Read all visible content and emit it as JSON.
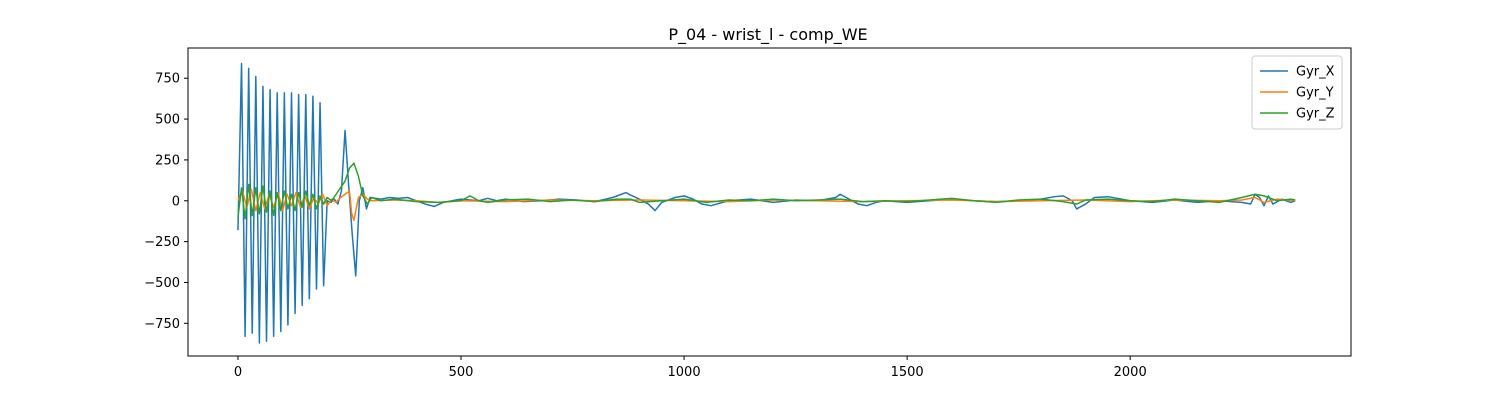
{
  "chart_data": {
    "type": "line",
    "title": "P_04 - wrist_l - comp_WE",
    "xlabel": "",
    "ylabel": "",
    "xlim": [
      -112,
      2495
    ],
    "ylim": [
      -950,
      935
    ],
    "xticks": [
      0,
      500,
      1000,
      1500,
      2000
    ],
    "yticks": [
      -750,
      -500,
      -250,
      0,
      250,
      500,
      750
    ],
    "legend_position": "top-right",
    "grid": false,
    "series": [
      {
        "name": "Gyr_X",
        "color": "#1f77b4",
        "x": [
          0,
          8,
          16,
          24,
          32,
          40,
          48,
          56,
          64,
          72,
          80,
          88,
          96,
          104,
          112,
          120,
          128,
          136,
          144,
          152,
          160,
          168,
          176,
          184,
          192,
          200,
          208,
          216,
          224,
          232,
          240,
          248,
          256,
          264,
          272,
          280,
          288,
          296,
          320,
          340,
          360,
          380,
          400,
          420,
          440,
          460,
          480,
          500,
          520,
          540,
          560,
          580,
          600,
          640,
          680,
          720,
          760,
          800,
          840,
          870,
          880,
          900,
          920,
          935,
          950,
          980,
          1000,
          1020,
          1040,
          1060,
          1100,
          1150,
          1200,
          1250,
          1300,
          1340,
          1350,
          1370,
          1390,
          1410,
          1430,
          1450,
          1500,
          1550,
          1600,
          1650,
          1700,
          1750,
          1800,
          1830,
          1850,
          1870,
          1880,
          1900,
          1920,
          1950,
          2000,
          2050,
          2100,
          2150,
          2200,
          2250,
          2270,
          2280,
          2290,
          2300,
          2310,
          2320,
          2340,
          2360,
          2370
        ],
        "y": [
          -180,
          840,
          -830,
          810,
          -810,
          760,
          -870,
          700,
          -860,
          680,
          -830,
          660,
          -800,
          660,
          -760,
          660,
          -690,
          650,
          -640,
          650,
          -600,
          640,
          -540,
          600,
          -520,
          0,
          -10,
          10,
          -20,
          60,
          430,
          100,
          -200,
          -460,
          0,
          80,
          -50,
          20,
          10,
          20,
          15,
          20,
          0,
          -20,
          -35,
          -10,
          0,
          10,
          5,
          0,
          15,
          0,
          10,
          -5,
          0,
          10,
          5,
          -5,
          20,
          50,
          35,
          10,
          -20,
          -60,
          -10,
          20,
          30,
          10,
          -20,
          -30,
          0,
          10,
          -10,
          5,
          0,
          20,
          40,
          10,
          -20,
          -30,
          -10,
          0,
          -10,
          0,
          10,
          0,
          -5,
          0,
          10,
          25,
          30,
          0,
          -50,
          -20,
          20,
          25,
          0,
          -10,
          5,
          -10,
          0,
          -10,
          -20,
          40,
          20,
          -30,
          30,
          -20,
          10,
          -10,
          0
        ]
      },
      {
        "name": "Gyr_Y",
        "color": "#ff7f0e",
        "x": [
          0,
          10,
          20,
          30,
          40,
          50,
          60,
          70,
          80,
          90,
          100,
          110,
          120,
          130,
          140,
          150,
          160,
          170,
          180,
          190,
          200,
          210,
          220,
          230,
          240,
          250,
          255,
          260,
          270,
          280,
          290,
          300,
          350,
          400,
          450,
          500,
          600,
          700,
          800,
          900,
          1000,
          1100,
          1200,
          1300,
          1400,
          1500,
          1600,
          1700,
          1800,
          1900,
          2000,
          2100,
          2200,
          2250,
          2280,
          2300,
          2330,
          2370
        ],
        "y": [
          0,
          60,
          -40,
          70,
          -60,
          50,
          -50,
          40,
          -40,
          50,
          -60,
          40,
          -30,
          50,
          -40,
          30,
          -50,
          20,
          -20,
          40,
          -30,
          10,
          -10,
          20,
          40,
          60,
          -80,
          -120,
          20,
          40,
          10,
          0,
          5,
          0,
          -10,
          0,
          -5,
          5,
          0,
          5,
          0,
          -5,
          5,
          0,
          -5,
          0,
          5,
          -5,
          0,
          5,
          -5,
          5,
          0,
          5,
          20,
          -10,
          10,
          0
        ]
      },
      {
        "name": "Gyr_Z",
        "color": "#2ca02c",
        "x": [
          0,
          8,
          16,
          24,
          32,
          40,
          48,
          56,
          64,
          72,
          80,
          88,
          96,
          104,
          112,
          120,
          128,
          136,
          144,
          152,
          160,
          168,
          176,
          184,
          192,
          200,
          210,
          220,
          230,
          240,
          250,
          260,
          270,
          280,
          290,
          300,
          320,
          350,
          400,
          450,
          500,
          520,
          540,
          560,
          600,
          650,
          700,
          750,
          800,
          850,
          880,
          900,
          950,
          1000,
          1050,
          1100,
          1150,
          1200,
          1250,
          1300,
          1350,
          1400,
          1450,
          1500,
          1550,
          1600,
          1650,
          1700,
          1750,
          1800,
          1850,
          1880,
          1900,
          1950,
          2000,
          2050,
          2100,
          2150,
          2200,
          2250,
          2280,
          2300,
          2330,
          2360,
          2370
        ],
        "y": [
          -100,
          80,
          -110,
          100,
          -90,
          80,
          -80,
          90,
          -70,
          60,
          -90,
          50,
          -60,
          60,
          -50,
          40,
          -60,
          50,
          -40,
          60,
          -30,
          40,
          -50,
          30,
          -20,
          20,
          0,
          40,
          80,
          120,
          200,
          230,
          150,
          30,
          -20,
          20,
          0,
          10,
          -5,
          -10,
          0,
          30,
          0,
          -10,
          5,
          10,
          -5,
          5,
          -5,
          10,
          10,
          -10,
          0,
          10,
          -10,
          5,
          0,
          10,
          0,
          5,
          10,
          -5,
          0,
          -5,
          5,
          15,
          0,
          -10,
          5,
          10,
          -5,
          -20,
          5,
          10,
          0,
          -5,
          10,
          0,
          -10,
          20,
          40,
          30,
          0,
          10,
          5
        ]
      }
    ]
  }
}
